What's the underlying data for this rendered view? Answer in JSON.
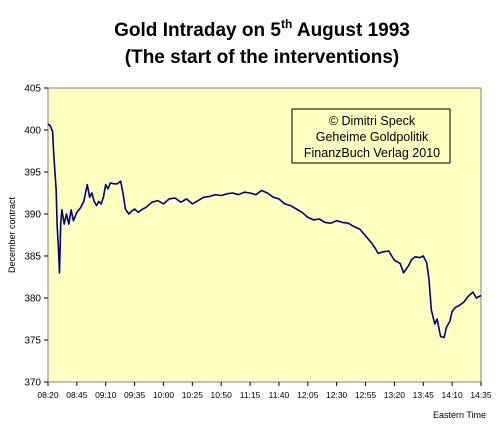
{
  "chart_data": {
    "type": "line",
    "title_line1_main": "Gold Intraday on 5",
    "title_line1_sup": "th",
    "title_line1_end": " August 1993",
    "title_line2": "(The start of the interventions)",
    "ylabel": "December contract",
    "xlabel": "Eastern Time",
    "ylim": [
      370,
      405
    ],
    "yticks": [
      "370",
      "375",
      "380",
      "385",
      "390",
      "395",
      "400",
      "405"
    ],
    "xticks": [
      "08:20",
      "08:45",
      "09:10",
      "09:35",
      "10:00",
      "10:25",
      "10:50",
      "11:15",
      "11:40",
      "12:05",
      "12:30",
      "12:55",
      "13:20",
      "13:45",
      "14:10",
      "14:35"
    ],
    "grid": false,
    "legend": "none",
    "colors": {
      "plot_bg": "#ffffc0",
      "line": "#000080",
      "box_border": "#000000"
    },
    "annotation": [
      "© Dimitri Speck",
      "Geheime Goldpolitik",
      "FinanzBuch Verlag 2010"
    ],
    "series": [
      {
        "x": [
          "08:20",
          "08:22",
          "08:24",
          "08:25",
          "08:27",
          "08:28",
          "08:29",
          "08:30",
          "08:31",
          "08:32",
          "08:34",
          "08:36",
          "08:38",
          "08:40",
          "08:42",
          "08:45",
          "08:48",
          "08:51",
          "08:54",
          "08:56",
          "08:58",
          "09:00",
          "09:02",
          "09:04",
          "09:06",
          "09:08",
          "09:10",
          "09:12",
          "09:14",
          "09:17",
          "09:20",
          "09:23",
          "09:25",
          "09:27",
          "09:30",
          "09:33",
          "09:35",
          "09:38",
          "09:42",
          "09:45",
          "09:50",
          "09:55",
          "10:00",
          "10:05",
          "10:10",
          "10:15",
          "10:20",
          "10:25",
          "10:30",
          "10:35",
          "10:40",
          "10:45",
          "10:50",
          "10:55",
          "11:00",
          "11:05",
          "11:10",
          "11:15",
          "11:20",
          "11:25",
          "11:30",
          "11:35",
          "11:40",
          "11:45",
          "11:50",
          "11:55",
          "12:00",
          "12:05",
          "12:10",
          "12:15",
          "12:20",
          "12:25",
          "12:30",
          "12:35",
          "12:40",
          "12:45",
          "12:50",
          "12:55",
          "13:00",
          "13:03",
          "13:06",
          "13:10",
          "13:15",
          "13:20",
          "13:25",
          "13:28",
          "13:32",
          "13:35",
          "13:38",
          "13:42",
          "13:45",
          "13:48",
          "13:50",
          "13:52",
          "13:55",
          "13:57",
          "14:00",
          "14:03",
          "14:05",
          "14:08",
          "14:10",
          "14:13",
          "14:16",
          "14:20",
          "14:24",
          "14:28",
          "14:31",
          "14:35"
        ],
        "y": [
          400.7,
          400.5,
          399.8,
          397.0,
          393.0,
          388.5,
          386.0,
          383.0,
          388.8,
          390.5,
          388.8,
          390.0,
          388.8,
          390.5,
          389.2,
          390.2,
          390.7,
          391.5,
          393.5,
          392.0,
          392.5,
          391.5,
          391.0,
          391.5,
          391.2,
          392.0,
          393.5,
          393.0,
          393.7,
          393.6,
          393.6,
          393.9,
          392.4,
          390.6,
          390.0,
          390.4,
          390.6,
          390.2,
          390.6,
          390.8,
          391.4,
          391.6,
          391.2,
          391.8,
          391.9,
          391.4,
          391.8,
          391.2,
          391.6,
          392.0,
          392.1,
          392.3,
          392.2,
          392.4,
          392.5,
          392.3,
          392.6,
          392.5,
          392.3,
          392.8,
          392.5,
          392.0,
          391.8,
          391.2,
          391.0,
          390.6,
          390.2,
          389.6,
          389.3,
          389.4,
          389.0,
          388.9,
          389.2,
          389.0,
          388.9,
          388.5,
          388.2,
          387.4,
          386.6,
          386.0,
          385.3,
          385.5,
          385.6,
          384.5,
          384.1,
          383.0,
          383.8,
          384.6,
          384.9,
          384.8,
          385.0,
          384.2,
          382.2,
          378.6,
          376.9,
          377.5,
          375.4,
          375.3,
          376.5,
          377.2,
          378.4,
          378.9,
          379.1,
          379.5,
          380.2,
          380.7,
          380.0,
          380.3
        ]
      }
    ]
  }
}
